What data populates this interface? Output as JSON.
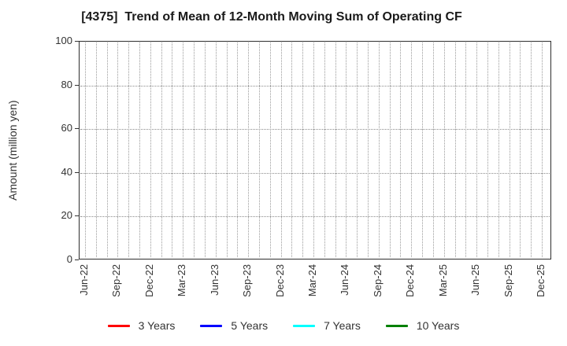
{
  "title": "[4375]  Trend of Mean of 12-Month Moving Sum of Operating CF",
  "chart_data": {
    "type": "line",
    "title": "[4375]  Trend of Mean of 12-Month Moving Sum of Operating CF",
    "xlabel": "",
    "ylabel": "Amount (million yen)",
    "ylim": [
      0,
      100
    ],
    "yticks": [
      0,
      20,
      40,
      60,
      80,
      100
    ],
    "x_tick_labels": [
      "Jun-22",
      "Sep-22",
      "Dec-22",
      "Mar-23",
      "Jun-23",
      "Sep-23",
      "Dec-23",
      "Mar-24",
      "Jun-24",
      "Sep-24",
      "Dec-24",
      "Mar-25",
      "Jun-25",
      "Sep-25",
      "Dec-25"
    ],
    "months_per_labeled_tick": 3,
    "total_vertical_gridlines": 43,
    "grid": "dotted",
    "legend_position": "bottom",
    "series": [
      {
        "name": "3 Years",
        "color": "#ff0000",
        "values": []
      },
      {
        "name": "5 Years",
        "color": "#0000ff",
        "values": []
      },
      {
        "name": "7 Years",
        "color": "#00ffff",
        "values": []
      },
      {
        "name": "10 Years",
        "color": "#008000",
        "values": []
      }
    ]
  },
  "colors": {
    "grid": "#9a9a9a",
    "axis_border": "#2f2f2f",
    "tick_text": "#333333",
    "title_text": "#1a1a1a",
    "background": "#ffffff"
  }
}
